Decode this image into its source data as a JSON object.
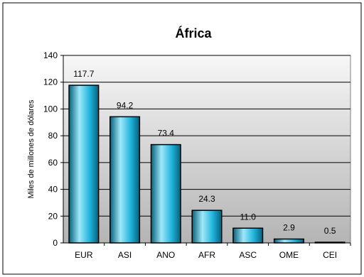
{
  "chart_data": {
    "type": "bar",
    "title": "África",
    "ylabel": "Miles de millones de dólares",
    "xlabel": "",
    "categories": [
      "EUR",
      "ASI",
      "ANO",
      "AFR",
      "ASC",
      "OME",
      "CEI"
    ],
    "values": [
      117.7,
      94.2,
      73.4,
      24.3,
      11.0,
      2.9,
      0.5
    ],
    "value_labels": [
      "117.7",
      "94.2",
      "73.4",
      "24.3",
      "11.0",
      "2.9",
      "0.5"
    ],
    "ylim": [
      0,
      140
    ],
    "yticks": [
      0,
      20,
      40,
      60,
      80,
      100,
      120,
      140
    ],
    "grid": true,
    "legend": "none",
    "colors": {
      "bar_light": "#9fe8fa",
      "bar_mid": "#1fb4dc",
      "bar_dark": "#07607a",
      "plot_bg_top": "#f7f7f7",
      "plot_bg_bottom": "#b4b4b4"
    }
  }
}
